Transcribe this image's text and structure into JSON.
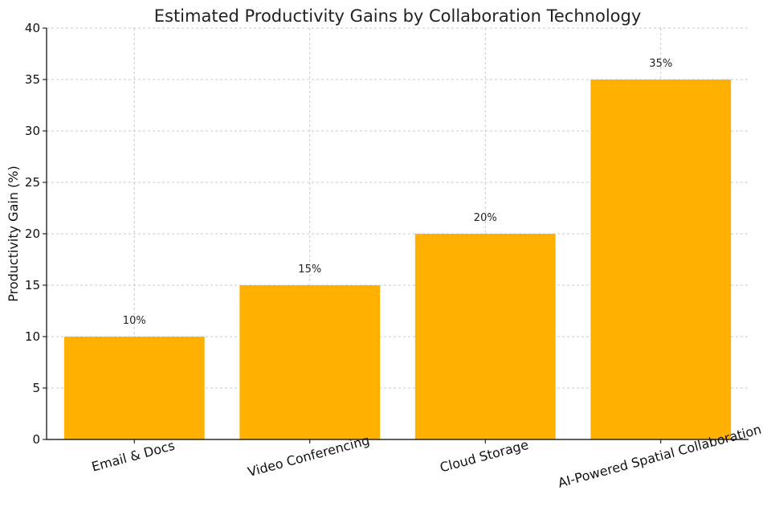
{
  "chart_data": {
    "type": "bar",
    "title": "Estimated Productivity Gains by Collaboration Technology",
    "xlabel": "",
    "ylabel": "Productivity Gain (%)",
    "categories": [
      "Email & Docs",
      "Video Conferencing",
      "Cloud Storage",
      "AI-Powered Spatial Collaboration"
    ],
    "values": [
      10,
      15,
      20,
      35
    ],
    "data_labels": [
      "10%",
      "15%",
      "20%",
      "35%"
    ],
    "ylim": [
      0,
      40
    ],
    "yticks": [
      0,
      5,
      10,
      15,
      20,
      25,
      30,
      35,
      40
    ],
    "grid": true,
    "bar_color": "#FFB000"
  }
}
